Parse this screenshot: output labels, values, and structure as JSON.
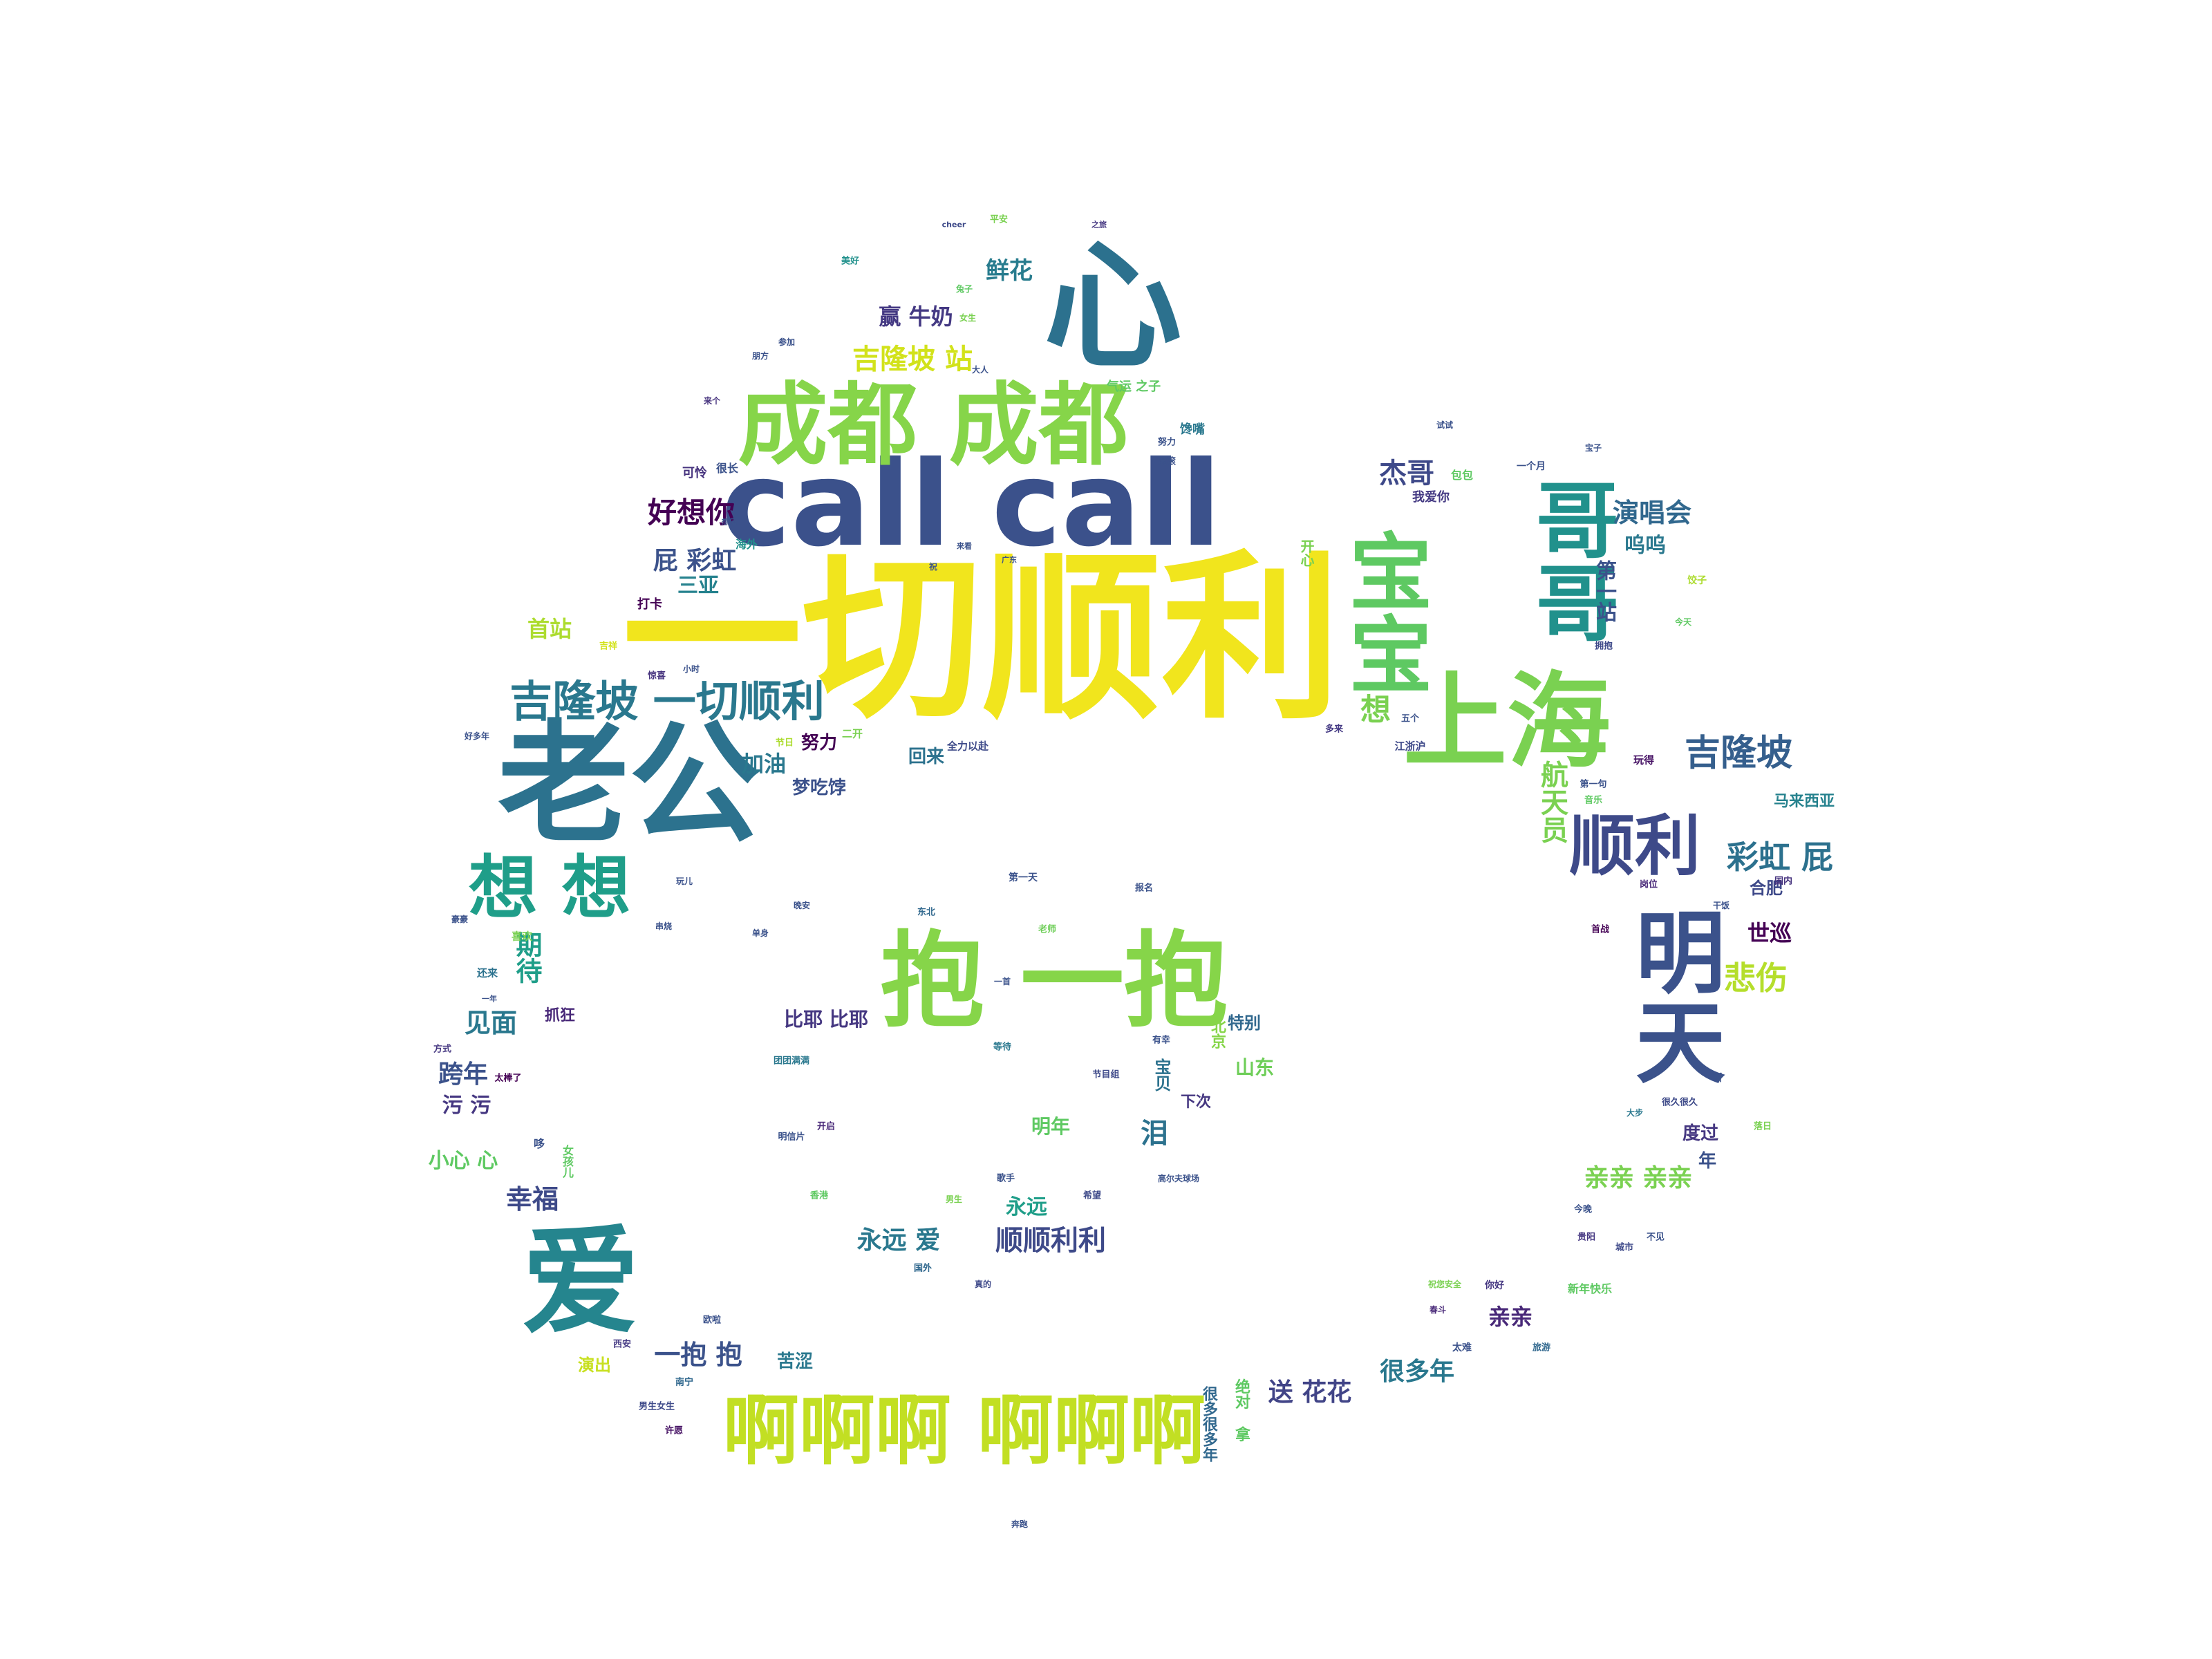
{
  "words": [
    {
      "text": "一切顺利",
      "color": "#f1e51d"
    },
    {
      "text": "call call",
      "color": "#3b518b"
    },
    {
      "text": "心",
      "color": "#2c718e"
    },
    {
      "text": "成都 成都",
      "color": "#86d549"
    },
    {
      "text": "老公",
      "color": "#2c728e"
    },
    {
      "text": "上海",
      "color": "#7ad151"
    },
    {
      "text": "抱 一抱",
      "color": "#86d549"
    },
    {
      "text": "宝宝",
      "color": "#5ec962"
    },
    {
      "text": "哥哥",
      "color": "#21918c"
    },
    {
      "text": "明天",
      "color": "#3b528b"
    },
    {
      "text": "爱",
      "color": "#25858e"
    },
    {
      "text": "啊啊啊 啊啊啊",
      "color": "#c2df23"
    },
    {
      "text": "想 想",
      "color": "#1f9e89"
    },
    {
      "text": "吉隆坡 一切顺利",
      "color": "#2a788e"
    },
    {
      "text": "顺利",
      "color": "#3e4a89"
    },
    {
      "text": "吉隆坡",
      "color": "#355f8d"
    },
    {
      "text": "吉隆坡 站",
      "color": "#d2e21b"
    },
    {
      "text": "好想你",
      "color": "#440154"
    },
    {
      "text": "屁 彩虹",
      "color": "#3b528b"
    },
    {
      "text": "三亚",
      "color": "#26828e"
    },
    {
      "text": "演唱会",
      "color": "#31688e"
    },
    {
      "text": "杰哥",
      "color": "#3e4989"
    },
    {
      "text": "鲜花",
      "color": "#287c8e"
    },
    {
      "text": "赢 牛奶",
      "color": "#443983"
    },
    {
      "text": "首站",
      "color": "#addc30"
    },
    {
      "text": "加油",
      "color": "#2a788e"
    },
    {
      "text": "努力",
      "color": "#440154"
    },
    {
      "text": "梦吃饽",
      "color": "#3b518b"
    },
    {
      "text": "回来",
      "color": "#2c728e"
    },
    {
      "text": "彩虹 屁",
      "color": "#2c718e"
    },
    {
      "text": "航天员",
      "color": "#7ad151"
    },
    {
      "text": "悲伤",
      "color": "#b5de2b"
    },
    {
      "text": "世巡",
      "color": "#440154"
    },
    {
      "text": "合肥",
      "color": "#3e4989"
    },
    {
      "text": "马来西亚",
      "color": "#26828e"
    },
    {
      "text": "第一站",
      "color": "#3b528b"
    },
    {
      "text": "呜呜",
      "color": "#2a788e"
    },
    {
      "text": "想",
      "color": "#7ad151"
    },
    {
      "text": "见面",
      "color": "#2a788e"
    },
    {
      "text": "期待",
      "color": "#1f9e89"
    },
    {
      "text": "抓狂",
      "color": "#482878"
    },
    {
      "text": "跨年",
      "color": "#3b528b"
    },
    {
      "text": "污 污",
      "color": "#453781"
    },
    {
      "text": "小心 心",
      "color": "#5ec962"
    },
    {
      "text": "幸福",
      "color": "#3e4a89"
    },
    {
      "text": "比耶 比耶",
      "color": "#453781"
    },
    {
      "text": "永远",
      "color": "#1f9e89"
    },
    {
      "text": "永远 爱",
      "color": "#2a788e"
    },
    {
      "text": "顺顺利利",
      "color": "#3e4a89"
    },
    {
      "text": "明年",
      "color": "#5ec962"
    },
    {
      "text": "泪",
      "color": "#2c728e"
    },
    {
      "text": "下次",
      "color": "#453781"
    },
    {
      "text": "山东",
      "color": "#6ece58"
    },
    {
      "text": "特别",
      "color": "#31688e"
    },
    {
      "text": "亲亲 亲亲",
      "color": "#7ad151"
    },
    {
      "text": "度过",
      "color": "#453781"
    },
    {
      "text": "年",
      "color": "#3b528b"
    },
    {
      "text": "很多年",
      "color": "#2a788e"
    },
    {
      "text": "送 花花",
      "color": "#414487"
    },
    {
      "text": "亲亲",
      "color": "#482878"
    },
    {
      "text": "一抱 抱",
      "color": "#3b528b"
    },
    {
      "text": "苦涩",
      "color": "#2a788e"
    },
    {
      "text": "演出",
      "color": "#c8e020"
    },
    {
      "text": "很多很多年",
      "color": "#31688e"
    },
    {
      "text": "绝对 拿",
      "color": "#5ec962"
    },
    {
      "text": "打卡",
      "color": "#440154"
    },
    {
      "text": "可怜",
      "color": "#46337e"
    },
    {
      "text": "很长",
      "color": "#3b528b"
    },
    {
      "text": "开心",
      "color": "#7ad151"
    },
    {
      "text": "我爱你",
      "color": "#443983"
    },
    {
      "text": "包包",
      "color": "#5ec962"
    },
    {
      "text": "一个月",
      "color": "#3b528b"
    },
    {
      "text": "全力以赴",
      "color": "#3e4a89"
    },
    {
      "text": "节日",
      "color": "#addc30"
    },
    {
      "text": "二开",
      "color": "#7ad151"
    },
    {
      "text": "海外",
      "color": "#21918c"
    },
    {
      "text": "吉祥",
      "color": "#d2e21b"
    },
    {
      "text": "小时",
      "color": "#3b528b"
    },
    {
      "text": "惊喜",
      "color": "#46337e"
    },
    {
      "text": "江浙沪",
      "color": "#3e4989"
    },
    {
      "text": "玩得",
      "color": "#471365"
    },
    {
      "text": "第一句",
      "color": "#3b528b"
    },
    {
      "text": "音乐",
      "color": "#5ec962"
    },
    {
      "text": "喜欢",
      "color": "#7ad151"
    },
    {
      "text": "还来",
      "color": "#2c728e"
    },
    {
      "text": "方式",
      "color": "#453781"
    },
    {
      "text": "太棒了",
      "color": "#440154"
    },
    {
      "text": "第一天",
      "color": "#3b528b"
    },
    {
      "text": "东北",
      "color": "#31688e"
    },
    {
      "text": "报名",
      "color": "#3b528b"
    },
    {
      "text": "老师",
      "color": "#6ece58"
    },
    {
      "text": "宝贝",
      "color": "#2c728e"
    },
    {
      "text": "北京",
      "color": "#86d549"
    },
    {
      "text": "有幸",
      "color": "#3b528b"
    },
    {
      "text": "等待",
      "color": "#2a788e"
    },
    {
      "text": "节目组",
      "color": "#3e4989"
    },
    {
      "text": "明信片",
      "color": "#3b528b"
    },
    {
      "text": "开启",
      "color": "#482878"
    },
    {
      "text": "香港",
      "color": "#5ec962"
    },
    {
      "text": "男生",
      "color": "#7ad151"
    },
    {
      "text": "歌手",
      "color": "#3b528b"
    },
    {
      "text": "希望",
      "color": "#3e4a89"
    },
    {
      "text": "高尔夫球场",
      "color": "#3b528b"
    },
    {
      "text": "国外",
      "color": "#31688e"
    },
    {
      "text": "真的",
      "color": "#3e4989"
    },
    {
      "text": "团团满满",
      "color": "#2a788e"
    },
    {
      "text": "南宁",
      "color": "#31688e"
    },
    {
      "text": "男生女生",
      "color": "#3e4a89"
    },
    {
      "text": "许愿",
      "color": "#471365"
    },
    {
      "text": "西安",
      "color": "#443983"
    },
    {
      "text": "欧啦",
      "color": "#3b528b"
    },
    {
      "text": "今晚",
      "color": "#3b528b"
    },
    {
      "text": "贵阳",
      "color": "#453781"
    },
    {
      "text": "城市",
      "color": "#3e4989"
    },
    {
      "text": "不见",
      "color": "#3b528b"
    },
    {
      "text": "新年快乐",
      "color": "#5ec962"
    },
    {
      "text": "你好",
      "color": "#453781"
    },
    {
      "text": "祝您安全",
      "color": "#7ad151"
    },
    {
      "text": "春斗",
      "color": "#482878"
    },
    {
      "text": "太难",
      "color": "#3b528b"
    },
    {
      "text": "旅游",
      "color": "#31688e"
    },
    {
      "text": "大步",
      "color": "#2a788e"
    },
    {
      "text": "很久很久",
      "color": "#3e4a89"
    },
    {
      "text": "听",
      "color": "#3b528b"
    },
    {
      "text": "落日",
      "color": "#7ad151"
    },
    {
      "text": "国内",
      "color": "#46337e"
    },
    {
      "text": "岗位",
      "color": "#482878"
    },
    {
      "text": "干饭",
      "color": "#3b528b"
    },
    {
      "text": "首战",
      "color": "#440154"
    },
    {
      "text": "平安",
      "color": "#7ad151"
    },
    {
      "text": "兔子",
      "color": "#5ec962"
    },
    {
      "text": "女生",
      "color": "#7ad151"
    },
    {
      "text": "大人",
      "color": "#3b528b"
    },
    {
      "text": "美好",
      "color": "#21918c"
    },
    {
      "text": "气运 之子",
      "color": "#5ec962"
    },
    {
      "text": "馋嘴",
      "color": "#2a788e"
    },
    {
      "text": "努力",
      "color": "#3b528b"
    },
    {
      "text": "滚滚",
      "color": "#3b528b"
    },
    {
      "text": "来个",
      "color": "#46337e"
    },
    {
      "text": "朋方",
      "color": "#3b528b"
    },
    {
      "text": "参加",
      "color": "#3b528b"
    },
    {
      "text": "cheer",
      "color": "#3e4a89"
    },
    {
      "text": "之旅",
      "color": "#453781"
    },
    {
      "text": "试试",
      "color": "#3b528b"
    },
    {
      "text": "宝子",
      "color": "#3b528b"
    },
    {
      "text": "饺子",
      "color": "#addc30"
    },
    {
      "text": "今天",
      "color": "#5ec962"
    },
    {
      "text": "五个",
      "color": "#3b528b"
    },
    {
      "text": "多来",
      "color": "#443983"
    },
    {
      "text": "拥抱",
      "color": "#3e4989"
    },
    {
      "text": "想见",
      "color": "#3b528b"
    },
    {
      "text": "来看",
      "color": "#3b528b"
    },
    {
      "text": "祝",
      "color": "#3b528b"
    },
    {
      "text": "广东",
      "color": "#3b528b"
    },
    {
      "text": "好多年",
      "color": "#3b528b"
    },
    {
      "text": "一年",
      "color": "#3b528b"
    },
    {
      "text": "女孩儿",
      "color": "#5ec962"
    },
    {
      "text": "哆",
      "color": "#3b528b"
    },
    {
      "text": "单身",
      "color": "#3b528b"
    },
    {
      "text": "串烧",
      "color": "#3b528b"
    },
    {
      "text": "玩儿",
      "color": "#3b528b"
    },
    {
      "text": "豪豪",
      "color": "#3b528b"
    },
    {
      "text": "晚安",
      "color": "#3b528b"
    },
    {
      "text": "一首",
      "color": "#3b528b"
    },
    {
      "text": "奔跑",
      "color": "#3b528b"
    }
  ]
}
